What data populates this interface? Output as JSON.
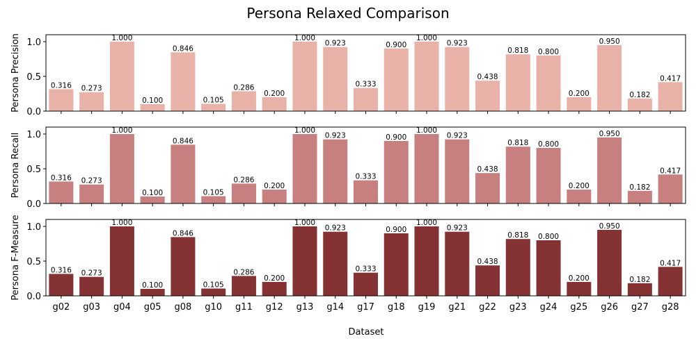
{
  "chart_data": {
    "type": "bar",
    "title": "Persona Relaxed Comparison",
    "xlabel": "Dataset",
    "categories": [
      "g02",
      "g03",
      "g04",
      "g05",
      "g08",
      "g10",
      "g11",
      "g12",
      "g13",
      "g14",
      "g17",
      "g18",
      "g19",
      "g21",
      "g22",
      "g23",
      "g24",
      "g25",
      "g26",
      "g27",
      "g28"
    ],
    "ylim": [
      0,
      1.1
    ],
    "yticks": [
      "0.0",
      "0.5",
      "1.0"
    ],
    "panels": [
      {
        "ylabel": "Persona Precision",
        "color": "#e8b2a9",
        "values": [
          0.316,
          0.273,
          1.0,
          0.1,
          0.846,
          0.105,
          0.286,
          0.2,
          1.0,
          0.923,
          0.333,
          0.9,
          1.0,
          0.923,
          0.438,
          0.818,
          0.8,
          0.2,
          0.95,
          0.182,
          0.417
        ],
        "labels": [
          "0.316",
          "0.273",
          "1.000",
          "0.100",
          "0.846",
          "0.105",
          "0.286",
          "0.200",
          "1.000",
          "0.923",
          "0.333",
          "0.900",
          "1.000",
          "0.923",
          "0.438",
          "0.818",
          "0.800",
          "0.200",
          "0.950",
          "0.182",
          "0.417"
        ]
      },
      {
        "ylabel": "Persona Recall",
        "color": "#c77f7f",
        "values": [
          0.316,
          0.273,
          1.0,
          0.1,
          0.846,
          0.105,
          0.286,
          0.2,
          1.0,
          0.923,
          0.333,
          0.9,
          1.0,
          0.923,
          0.438,
          0.818,
          0.8,
          0.2,
          0.95,
          0.182,
          0.417
        ],
        "labels": [
          "0.316",
          "0.273",
          "1.000",
          "0.100",
          "0.846",
          "0.105",
          "0.286",
          "0.200",
          "1.000",
          "0.923",
          "0.333",
          "0.900",
          "1.000",
          "0.923",
          "0.438",
          "0.818",
          "0.800",
          "0.200",
          "0.950",
          "0.182",
          "0.417"
        ]
      },
      {
        "ylabel": "Persona F-Measure",
        "color": "#853234",
        "values": [
          0.316,
          0.273,
          1.0,
          0.1,
          0.846,
          0.105,
          0.286,
          0.2,
          1.0,
          0.923,
          0.333,
          0.9,
          1.0,
          0.923,
          0.438,
          0.818,
          0.8,
          0.2,
          0.95,
          0.182,
          0.417
        ],
        "labels": [
          "0.316",
          "0.273",
          "1.000",
          "0.100",
          "0.846",
          "0.105",
          "0.286",
          "0.200",
          "1.000",
          "0.923",
          "0.333",
          "0.900",
          "1.000",
          "0.923",
          "0.438",
          "0.818",
          "0.800",
          "0.200",
          "0.950",
          "0.182",
          "0.417"
        ]
      }
    ]
  }
}
